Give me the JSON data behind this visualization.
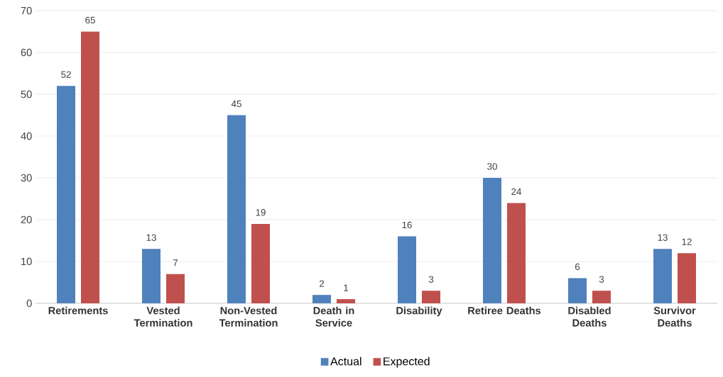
{
  "chart_data": {
    "type": "bar",
    "categories": [
      "Retirements",
      "Vested Termination",
      "Non-Vested Termination",
      "Death in Service",
      "Disability",
      "Retiree Deaths",
      "Disabled Deaths",
      "Survivor Deaths"
    ],
    "series": [
      {
        "name": "Actual",
        "color": "#4f81bd",
        "values": [
          52,
          13,
          45,
          2,
          16,
          30,
          6,
          13
        ]
      },
      {
        "name": "Expected",
        "color": "#c0504d",
        "values": [
          65,
          7,
          19,
          1,
          3,
          24,
          3,
          12
        ]
      }
    ],
    "ylim": [
      0,
      70
    ],
    "yticks": [
      0,
      10,
      20,
      30,
      40,
      50,
      60,
      70
    ],
    "grid": "y",
    "legend": "bottom",
    "data_labels": true
  }
}
